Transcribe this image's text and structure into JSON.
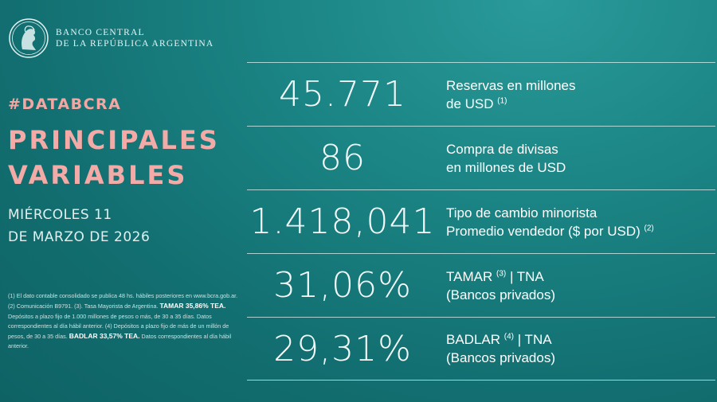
{
  "header": {
    "bank_name_line1": "BANCO CENTRAL",
    "bank_name_line2": "DE LA REPÚBLICA ARGENTINA",
    "logo_icon": "bcra-seal-icon"
  },
  "left": {
    "hashtag": "#DATABCRA",
    "headline_line1": "PRINCIPALES",
    "headline_line2": "VARIABLES",
    "date_line1": "MIÉRCOLES 11",
    "date_line2": "DE MARZO DE 2026"
  },
  "notes": {
    "n1": "(1) El dato contable consolidado se publica 48 hs. hábiles posteriores en www.bcra.gob.ar. (2) Comunicación B9791. (3). Tasa Mayorista de Argentina. ",
    "tamar": "TAMAR 35,86% TEA.",
    "n2": " Depósitos a plazo fijo de 1.000 millones de pesos o más, de 30 a 35 días. Datos correspondientes al día hábil anterior. (4) Depósitos a plazo fijo de más de un millón de pesos, de 30 a 35 días. ",
    "badlar": "BADLAR 33,57% TEA.",
    "n3": " Datos correspondientes al día hábil anterior."
  },
  "rows": [
    {
      "value": "45.771",
      "label1": "Reservas en millones",
      "label2": "de USD",
      "sup2": "(1)"
    },
    {
      "value": "86",
      "label1": "Compra de divisas",
      "label2": "en millones de USD"
    },
    {
      "value": "1.418,041",
      "label1": "Tipo de cambio minorista",
      "label2": "Promedio vendedor ($ por USD)",
      "sup2": "(2)"
    },
    {
      "value": "31,06%",
      "label1a": "TAMAR",
      "sup1": "(3)",
      "label1b": " | TNA",
      "label2": "(Bancos privados)"
    },
    {
      "value": "29,31%",
      "label1a": "BADLAR",
      "sup1": "(4)",
      "label1b": " | TNA",
      "label2": "(Bancos privados)"
    }
  ],
  "colors": {
    "background": "#1b8484",
    "accent": "#f4aaa6"
  }
}
